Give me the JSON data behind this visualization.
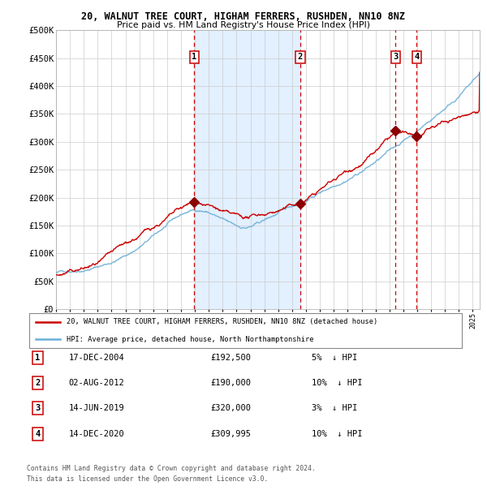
{
  "title1": "20, WALNUT TREE COURT, HIGHAM FERRERS, RUSHDEN, NN10 8NZ",
  "title2": "Price paid vs. HM Land Registry's House Price Index (HPI)",
  "ylabel_ticks": [
    "£0",
    "£50K",
    "£100K",
    "£150K",
    "£200K",
    "£250K",
    "£300K",
    "£350K",
    "£400K",
    "£450K",
    "£500K"
  ],
  "ytick_values": [
    0,
    50000,
    100000,
    150000,
    200000,
    250000,
    300000,
    350000,
    400000,
    450000,
    500000
  ],
  "x_start_year": 1995,
  "x_end_year": 2025,
  "transactions": [
    {
      "id": 1,
      "date": "17-DEC-2004",
      "year": 2004.96,
      "price": 192500,
      "pct": "5%",
      "dir": "↓"
    },
    {
      "id": 2,
      "date": "02-AUG-2012",
      "year": 2012.58,
      "price": 190000,
      "pct": "10%",
      "dir": "↓"
    },
    {
      "id": 3,
      "date": "14-JUN-2019",
      "year": 2019.45,
      "price": 320000,
      "pct": "3%",
      "dir": "↓"
    },
    {
      "id": 4,
      "date": "14-DEC-2020",
      "year": 2020.96,
      "price": 309995,
      "pct": "10%",
      "dir": "↓"
    }
  ],
  "legend_line1": "20, WALNUT TREE COURT, HIGHAM FERRERS, RUSHDEN, NN10 8NZ (detached house)",
  "legend_line2": "HPI: Average price, detached house, North Northamptonshire",
  "footer1": "Contains HM Land Registry data © Crown copyright and database right 2024.",
  "footer2": "This data is licensed under the Open Government Licence v3.0.",
  "hpi_color": "#6baed6",
  "price_color": "#cc0000",
  "bg_shade_color": "#ddeeff",
  "dashed_color": "#cc0000",
  "marker_color": "#8b0000",
  "seed": 42
}
